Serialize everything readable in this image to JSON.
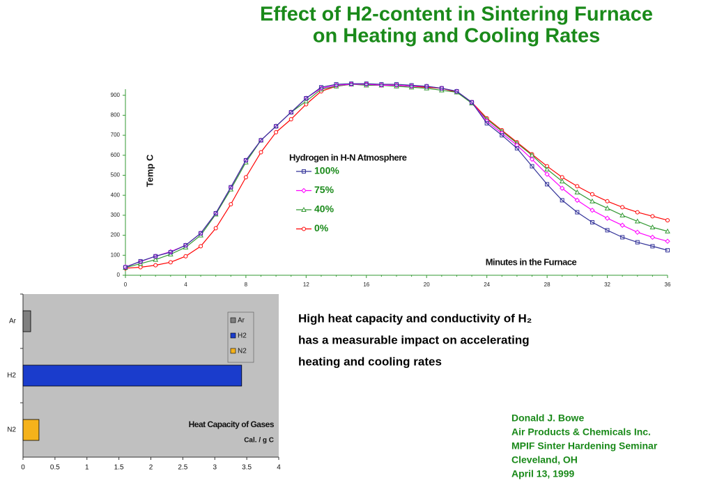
{
  "title": [
    "Effect of H2-content in Sintering Furnace",
    "on Heating and Cooling Rates"
  ],
  "chart_data": [
    {
      "type": "line",
      "y_label": "Temp C",
      "x_label": "Minutes in the Furnace",
      "legend_title": "Hydrogen in H-N Atmosphere",
      "x": [
        0,
        1,
        2,
        3,
        4,
        5,
        6,
        7,
        8,
        9,
        10,
        11,
        12,
        13,
        14,
        15,
        16,
        17,
        18,
        19,
        20,
        21,
        22,
        23,
        24,
        25,
        26,
        27,
        28,
        29,
        30,
        31,
        32,
        33,
        34,
        35,
        36
      ],
      "xlim": [
        0,
        36
      ],
      "xticks": [
        0,
        4,
        8,
        12,
        16,
        20,
        24,
        28,
        32,
        36
      ],
      "ylim": [
        0,
        1000
      ],
      "yticks": [
        0,
        100,
        200,
        300,
        400,
        500,
        600,
        700,
        800,
        900
      ],
      "series": [
        {
          "name": "100%",
          "color": "#333399",
          "values": [
            40,
            70,
            95,
            115,
            150,
            210,
            310,
            440,
            575,
            675,
            745,
            815,
            885,
            940,
            955,
            958,
            958,
            955,
            955,
            950,
            945,
            935,
            920,
            865,
            760,
            700,
            635,
            545,
            455,
            375,
            315,
            265,
            225,
            190,
            165,
            145,
            125
          ]
        },
        {
          "name": "75%",
          "color": "#ff00ff",
          "values": [
            42,
            68,
            95,
            118,
            150,
            210,
            310,
            440,
            575,
            675,
            745,
            815,
            885,
            935,
            950,
            955,
            955,
            950,
            950,
            945,
            945,
            935,
            920,
            865,
            770,
            710,
            650,
            580,
            505,
            435,
            375,
            325,
            285,
            250,
            215,
            190,
            170
          ]
        },
        {
          "name": "40%",
          "color": "#339933",
          "values": [
            38,
            58,
            78,
            105,
            140,
            200,
            305,
            430,
            565,
            675,
            745,
            815,
            870,
            930,
            945,
            955,
            950,
            950,
            945,
            940,
            935,
            925,
            915,
            860,
            780,
            720,
            660,
            600,
            530,
            470,
            415,
            370,
            335,
            300,
            270,
            240,
            220
          ]
        },
        {
          "name": "0%",
          "color": "#ff0000",
          "values": [
            35,
            40,
            50,
            65,
            95,
            145,
            235,
            355,
            490,
            615,
            715,
            780,
            855,
            920,
            945,
            955,
            955,
            950,
            950,
            945,
            940,
            935,
            915,
            865,
            785,
            725,
            665,
            605,
            545,
            490,
            445,
            405,
            370,
            340,
            315,
            295,
            275
          ]
        }
      ]
    },
    {
      "type": "barh",
      "annotation": [
        "Heat Capacity of Gases",
        "Cal. / g C"
      ],
      "categories": [
        "Ar",
        "H2",
        "N2"
      ],
      "values": [
        0.12,
        3.42,
        0.25
      ],
      "colors": [
        "#808080",
        "#1a3ccc",
        "#f5b21b"
      ],
      "xlim": [
        0,
        4
      ],
      "xticks": [
        0,
        0.5,
        1,
        1.5,
        2,
        2.5,
        3,
        3.5,
        4
      ]
    }
  ],
  "note": [
    "High heat capacity and conductivity of H₂",
    "has a measurable impact on accelerating",
    "heating and cooling rates"
  ],
  "author": [
    "Donald J. Bowe",
    "Air Products & Chemicals Inc.",
    "MPIF Sinter Hardening Seminar",
    "Cleveland, OH",
    "April 13, 1999"
  ]
}
